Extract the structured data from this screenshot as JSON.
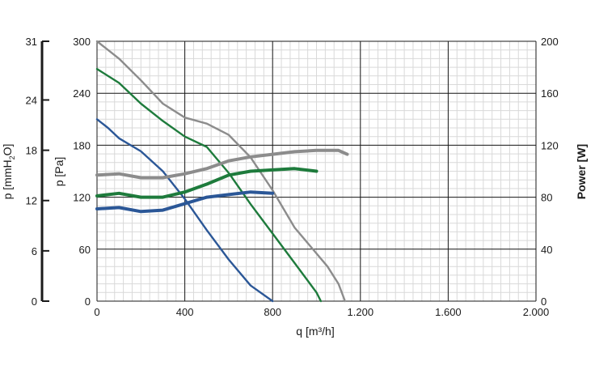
{
  "chart_data": {
    "type": "line",
    "x_axis": {
      "label": "q [m³/h]",
      "range": [
        0,
        2000
      ],
      "ticks": [
        0,
        400,
        800,
        1200,
        1600,
        2000
      ],
      "tick_labels": [
        "0",
        "400",
        "800",
        "1.200",
        "1.600",
        "2.000"
      ]
    },
    "y_axis_pressure_pa": {
      "label": "p [Pa]",
      "range": [
        0,
        300
      ],
      "ticks": [
        0,
        60,
        120,
        180,
        240,
        300
      ],
      "tick_labels": [
        "0",
        "60",
        "120",
        "180",
        "240",
        "300"
      ]
    },
    "y_axis_pressure_mmh2o": {
      "label_prefix": "p [mmH",
      "label_sub": "2",
      "label_suffix": "O]",
      "range": [
        0,
        31
      ],
      "ticks": [
        0,
        6,
        12,
        18,
        24,
        31
      ],
      "tick_labels": [
        "0",
        "6",
        "12",
        "18",
        "24",
        "31"
      ]
    },
    "y_axis_power": {
      "label": "Power [W]",
      "range": [
        0,
        200
      ],
      "ticks": [
        0,
        40,
        80,
        120,
        160,
        200
      ],
      "tick_labels": [
        "0",
        "40",
        "80",
        "120",
        "160",
        "200"
      ]
    },
    "grid": true,
    "colors": {
      "blue": "#2b5797",
      "green": "#1e7b3c",
      "gray": "#8c8c8c"
    },
    "series": [
      {
        "axis": "pressure",
        "color": "blue",
        "x": [
          0,
          50,
          100,
          200,
          300,
          400,
          500,
          600,
          700,
          800
        ],
        "y": [
          210,
          200,
          188,
          173,
          150,
          118,
          82,
          48,
          18,
          0
        ]
      },
      {
        "axis": "pressure",
        "color": "green",
        "x": [
          0,
          100,
          200,
          300,
          400,
          500,
          600,
          700,
          800,
          900,
          1000,
          1020
        ],
        "y": [
          268,
          252,
          228,
          208,
          190,
          178,
          148,
          112,
          78,
          44,
          10,
          0
        ]
      },
      {
        "axis": "pressure",
        "color": "gray",
        "x": [
          0,
          50,
          100,
          200,
          300,
          400,
          500,
          600,
          700,
          800,
          900,
          1000,
          1050,
          1100,
          1130
        ],
        "y": [
          300,
          290,
          280,
          255,
          228,
          212,
          205,
          192,
          166,
          128,
          85,
          55,
          40,
          20,
          0
        ]
      },
      {
        "axis": "power",
        "color": "blue",
        "x": [
          0,
          100,
          200,
          300,
          400,
          500,
          600,
          700,
          800
        ],
        "y": [
          71,
          72,
          69,
          70,
          75,
          80,
          82,
          84,
          83
        ]
      },
      {
        "axis": "power",
        "color": "green",
        "x": [
          0,
          100,
          200,
          300,
          400,
          500,
          600,
          700,
          800,
          900,
          1000
        ],
        "y": [
          81,
          83,
          80,
          80,
          84,
          90,
          97,
          100,
          101,
          102,
          100
        ]
      },
      {
        "axis": "power",
        "color": "gray",
        "x": [
          0,
          100,
          200,
          300,
          400,
          500,
          600,
          700,
          800,
          900,
          1000,
          1100,
          1140
        ],
        "y": [
          97,
          98,
          95,
          95,
          98,
          102,
          108,
          111,
          113,
          115,
          116,
          116,
          113
        ]
      }
    ]
  }
}
